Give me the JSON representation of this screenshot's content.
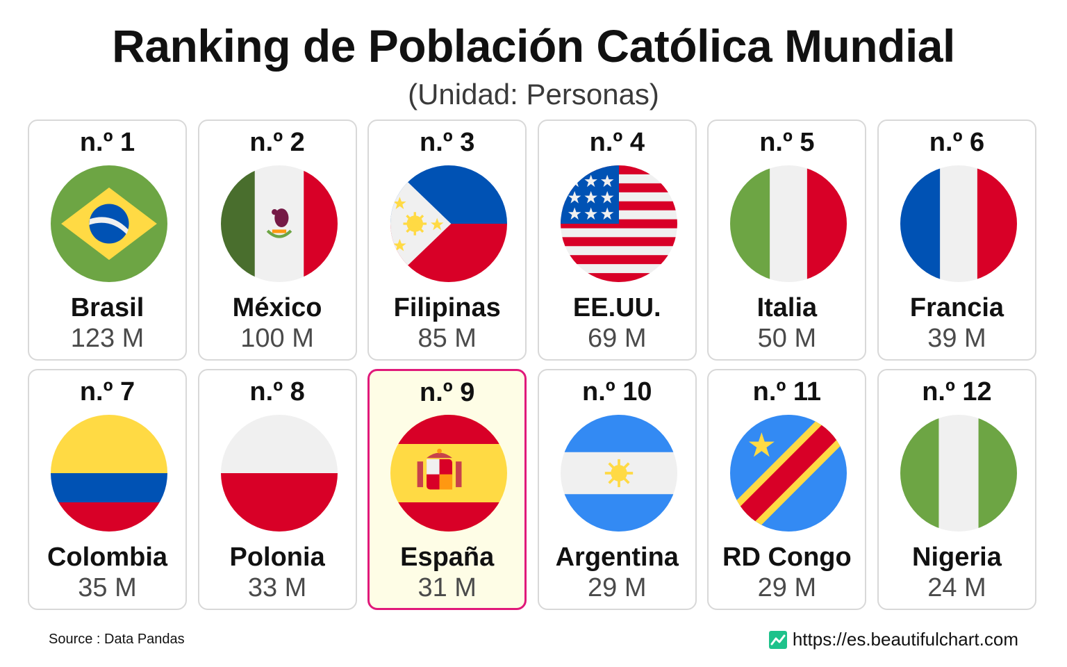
{
  "title": "Ranking de Población Católica Mundial",
  "subtitle": "(Unidad: Personas)",
  "source": "Source : Data Pandas",
  "website": "https://es.beautifulchart.com",
  "highlight_color": "#e0197a",
  "highlight_background": "#fefde6",
  "chart_data": {
    "type": "table",
    "columns": [
      "rank",
      "country",
      "catholic_population"
    ],
    "rows": [
      {
        "rank": "n.º 1",
        "country": "Brasil",
        "value": "123 M",
        "flag": "brazil-flag-icon"
      },
      {
        "rank": "n.º 2",
        "country": "México",
        "value": "100 M",
        "flag": "mexico-flag-icon"
      },
      {
        "rank": "n.º 3",
        "country": "Filipinas",
        "value": "85 M",
        "flag": "philippines-flag-icon"
      },
      {
        "rank": "n.º 4",
        "country": "EE.UU.",
        "value": "69 M",
        "flag": "usa-flag-icon"
      },
      {
        "rank": "n.º 5",
        "country": "Italia",
        "value": "50 M",
        "flag": "italy-flag-icon"
      },
      {
        "rank": "n.º 6",
        "country": "Francia",
        "value": "39 M",
        "flag": "france-flag-icon"
      },
      {
        "rank": "n.º 7",
        "country": "Colombia",
        "value": "35 M",
        "flag": "colombia-flag-icon"
      },
      {
        "rank": "n.º 8",
        "country": "Polonia",
        "value": "33 M",
        "flag": "poland-flag-icon"
      },
      {
        "rank": "n.º 9",
        "country": "España",
        "value": "31 M",
        "flag": "spain-flag-icon",
        "highlighted": true
      },
      {
        "rank": "n.º 10",
        "country": "Argentina",
        "value": "29 M",
        "flag": "argentina-flag-icon"
      },
      {
        "rank": "n.º 11",
        "country": "RD Congo",
        "value": "29 M",
        "flag": "drcongo-flag-icon"
      },
      {
        "rank": "n.º 12",
        "country": "Nigeria",
        "value": "24 M",
        "flag": "nigeria-flag-icon"
      }
    ]
  }
}
